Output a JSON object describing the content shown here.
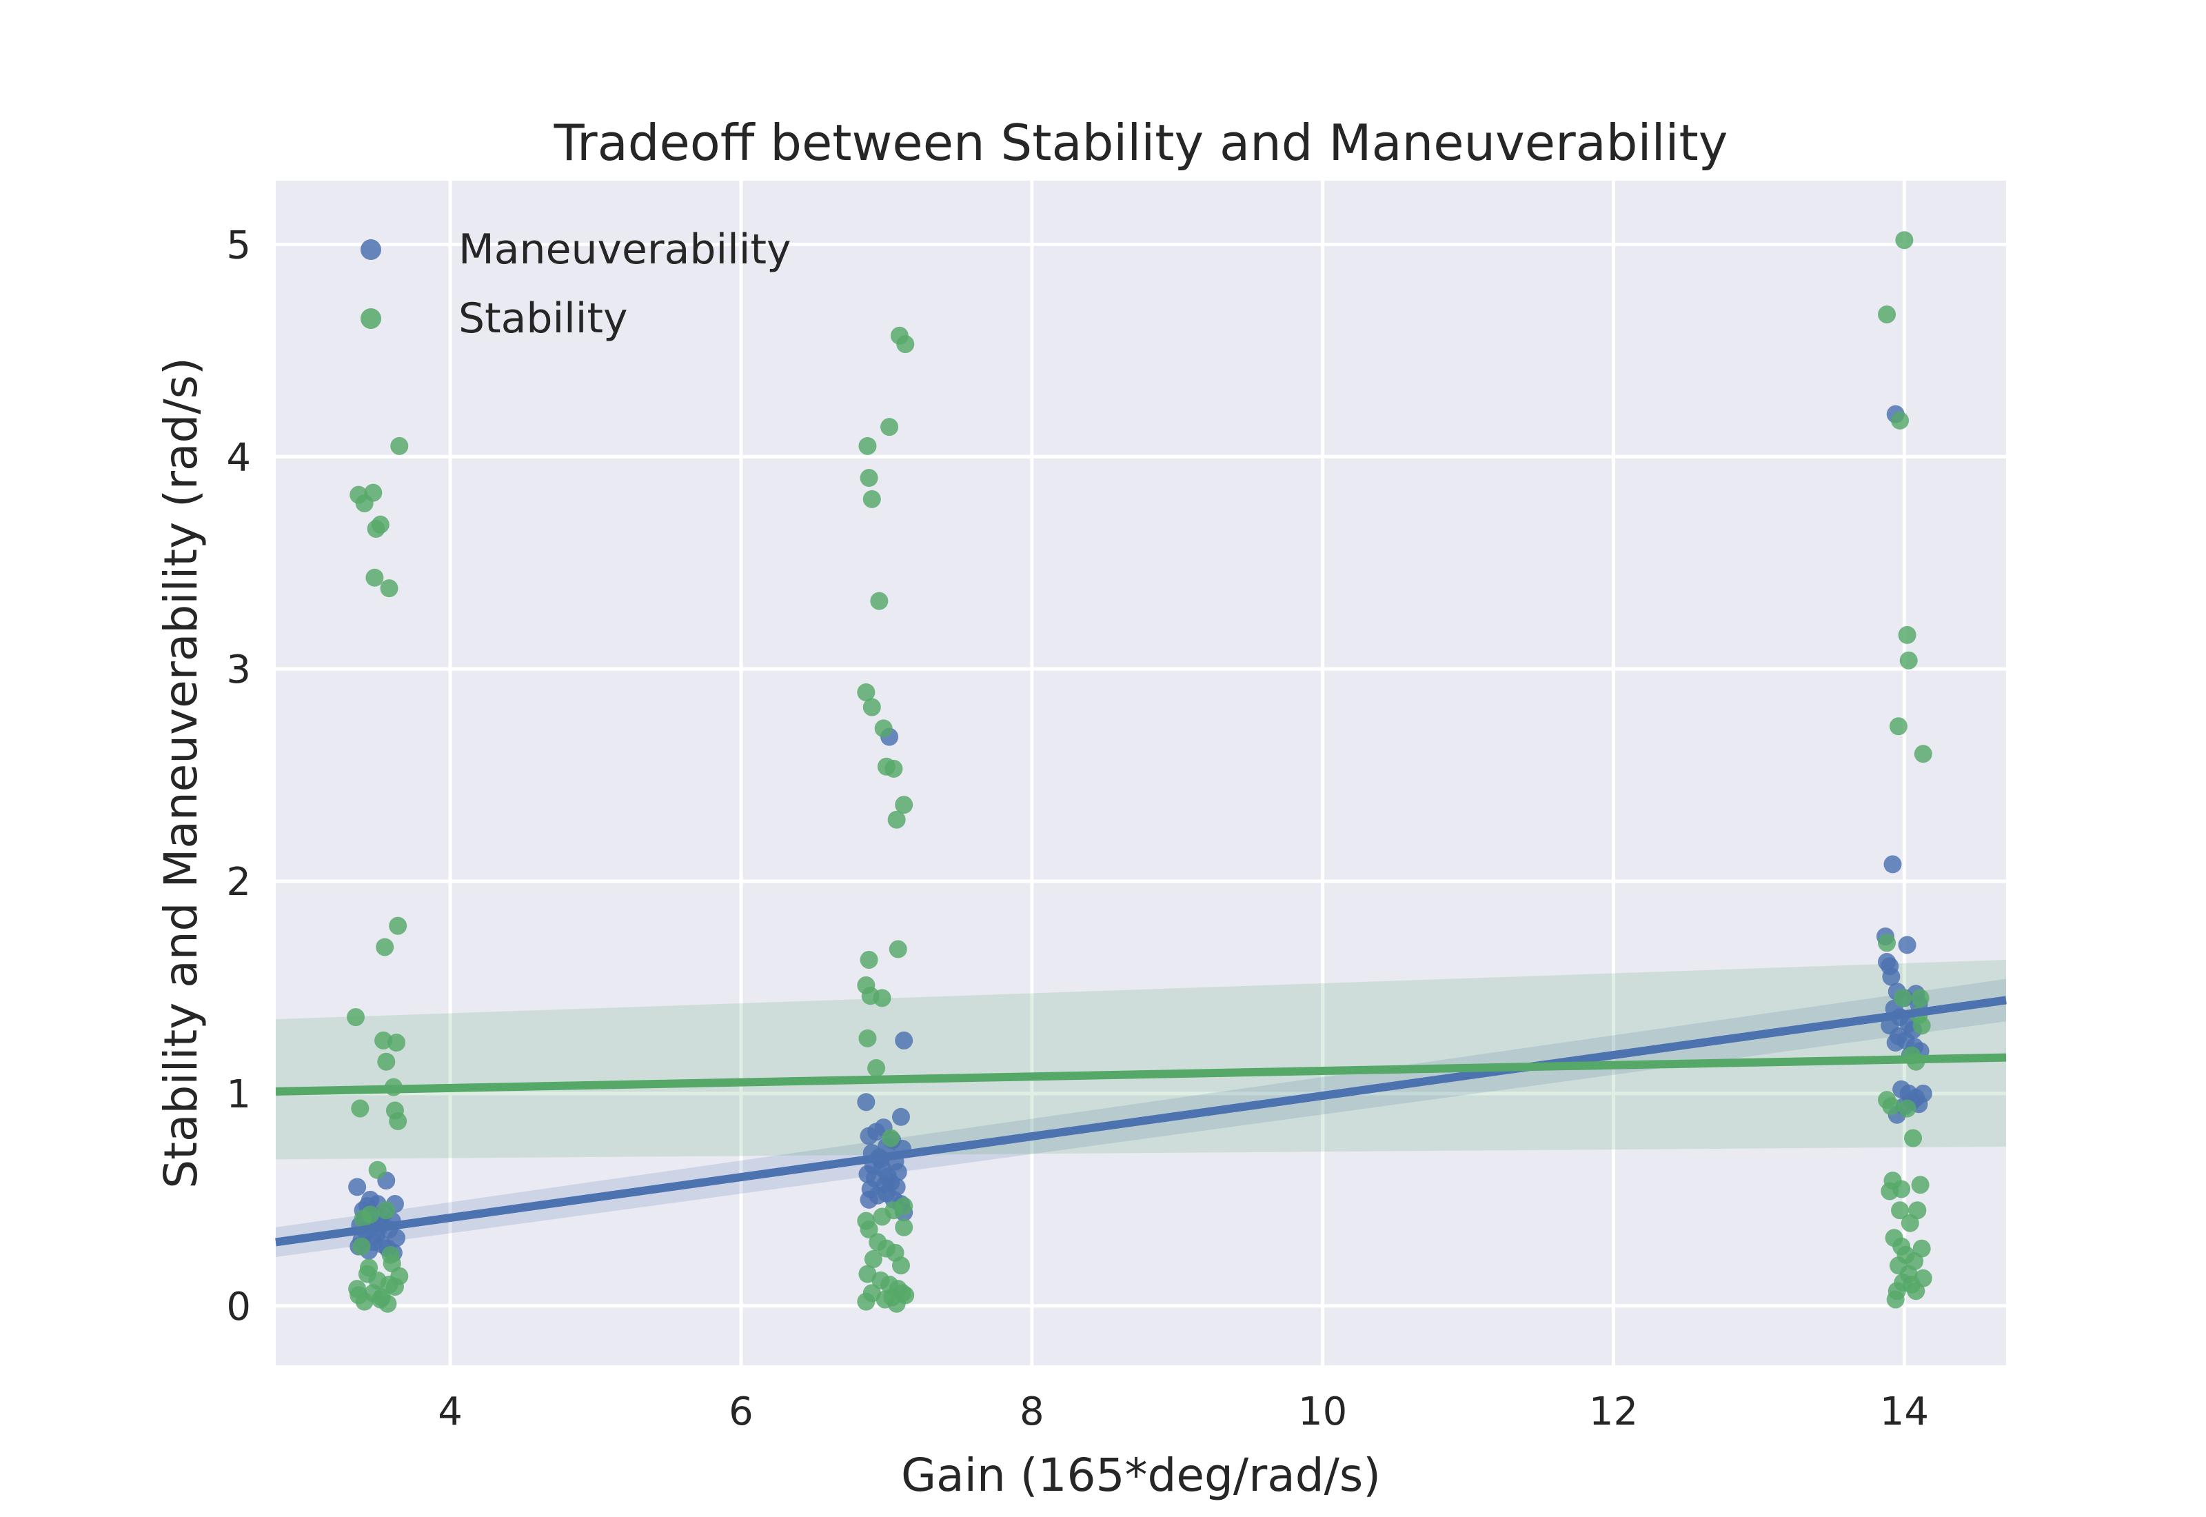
{
  "colors": {
    "plot_background": "#EAEAF2",
    "grid": "#FFFFFF",
    "maneuverability": "#4C72B0",
    "stability": "#55A868"
  },
  "chart_data": {
    "type": "scatter",
    "title": "Tradeoff between Stability and Maneuverability",
    "xlabel": "Gain (165*deg/rad/s)",
    "ylabel": "Stability and Maneuverability (rad/s)",
    "xlim": [
      2.8,
      14.7
    ],
    "ylim": [
      -0.28,
      5.3
    ],
    "x_ticks": [
      4,
      6,
      8,
      10,
      12,
      14
    ],
    "x_tick_labels": [
      "4",
      "6",
      "8",
      "10",
      "12",
      "14"
    ],
    "y_ticks": [
      0,
      1,
      2,
      3,
      4,
      5
    ],
    "y_tick_labels": [
      "0",
      "1",
      "2",
      "3",
      "4",
      "5"
    ],
    "grid": true,
    "legend": "top-left",
    "series": [
      {
        "name": "Maneuverability",
        "color": "#4C72B0",
        "points": [
          [
            3.36,
            0.56
          ],
          [
            3.4,
            0.45
          ],
          [
            3.45,
            0.5
          ],
          [
            3.5,
            0.48
          ],
          [
            3.56,
            0.59
          ],
          [
            3.62,
            0.48
          ],
          [
            3.38,
            0.38
          ],
          [
            3.42,
            0.35
          ],
          [
            3.47,
            0.3
          ],
          [
            3.52,
            0.42
          ],
          [
            3.58,
            0.36
          ],
          [
            3.63,
            0.32
          ],
          [
            3.37,
            0.28
          ],
          [
            3.44,
            0.26
          ],
          [
            3.49,
            0.33
          ],
          [
            3.55,
            0.44
          ],
          [
            3.6,
            0.4
          ],
          [
            3.41,
            0.41
          ],
          [
            3.53,
            0.29
          ],
          [
            3.46,
            0.39
          ],
          [
            3.57,
            0.27
          ],
          [
            3.39,
            0.31
          ],
          [
            3.51,
            0.37
          ],
          [
            3.61,
            0.25
          ],
          [
            3.43,
            0.47
          ],
          [
            6.86,
            0.96
          ],
          [
            7.12,
            1.25
          ],
          [
            7.02,
            2.68
          ],
          [
            6.88,
            0.8
          ],
          [
            6.93,
            0.82
          ],
          [
            6.98,
            0.84
          ],
          [
            7.04,
            0.78
          ],
          [
            7.1,
            0.89
          ],
          [
            6.9,
            0.72
          ],
          [
            6.95,
            0.7
          ],
          [
            7.0,
            0.75
          ],
          [
            7.06,
            0.68
          ],
          [
            7.11,
            0.74
          ],
          [
            6.87,
            0.62
          ],
          [
            6.92,
            0.6
          ],
          [
            6.97,
            0.65
          ],
          [
            7.03,
            0.58
          ],
          [
            7.08,
            0.63
          ],
          [
            6.89,
            0.55
          ],
          [
            6.94,
            0.52
          ],
          [
            6.99,
            0.57
          ],
          [
            7.05,
            0.5
          ],
          [
            7.1,
            0.48
          ],
          [
            6.91,
            0.66
          ],
          [
            6.96,
            0.69
          ],
          [
            7.01,
            0.61
          ],
          [
            7.07,
            0.56
          ],
          [
            6.88,
            0.5
          ],
          [
            7.12,
            0.44
          ],
          [
            7.0,
            0.53
          ],
          [
            13.87,
            1.74
          ],
          [
            13.9,
            1.6
          ],
          [
            13.92,
            2.08
          ],
          [
            13.94,
            4.2
          ],
          [
            14.02,
            1.7
          ],
          [
            13.88,
            1.62
          ],
          [
            13.91,
            1.55
          ],
          [
            13.95,
            1.48
          ],
          [
            14.0,
            1.45
          ],
          [
            14.08,
            1.47
          ],
          [
            14.1,
            1.42
          ],
          [
            13.93,
            1.4
          ],
          [
            13.97,
            1.36
          ],
          [
            14.03,
            1.33
          ],
          [
            14.06,
            1.3
          ],
          [
            13.9,
            1.32
          ],
          [
            13.96,
            1.27
          ],
          [
            14.01,
            1.25
          ],
          [
            14.07,
            1.22
          ],
          [
            14.11,
            1.2
          ],
          [
            13.94,
            1.24
          ],
          [
            14.04,
            1.18
          ],
          [
            13.98,
            1.02
          ],
          [
            14.03,
            1.0
          ],
          [
            14.08,
            0.98
          ],
          [
            14.13,
            1.0
          ],
          [
            13.95,
            0.9
          ],
          [
            14.0,
            0.94
          ],
          [
            14.05,
            0.96
          ],
          [
            14.1,
            0.95
          ]
        ],
        "regression": {
          "x": [
            2.8,
            14.7
          ],
          "y": [
            0.3,
            1.44
          ],
          "ci_lower": [
            0.23,
            1.34
          ],
          "ci_upper": [
            0.37,
            1.54
          ]
        }
      },
      {
        "name": "Stability",
        "color": "#55A868",
        "points": [
          [
            3.65,
            4.05
          ],
          [
            3.37,
            3.82
          ],
          [
            3.41,
            3.78
          ],
          [
            3.47,
            3.83
          ],
          [
            3.49,
            3.66
          ],
          [
            3.52,
            3.68
          ],
          [
            3.48,
            3.43
          ],
          [
            3.58,
            3.38
          ],
          [
            3.64,
            1.79
          ],
          [
            3.55,
            1.69
          ],
          [
            3.35,
            1.36
          ],
          [
            3.54,
            1.25
          ],
          [
            3.63,
            1.24
          ],
          [
            3.56,
            1.15
          ],
          [
            3.61,
            1.03
          ],
          [
            3.38,
            0.93
          ],
          [
            3.62,
            0.92
          ],
          [
            3.64,
            0.87
          ],
          [
            3.5,
            0.64
          ],
          [
            3.4,
            0.41
          ],
          [
            3.45,
            0.43
          ],
          [
            3.56,
            0.45
          ],
          [
            3.39,
            0.28
          ],
          [
            3.6,
            0.2
          ],
          [
            3.43,
            0.15
          ],
          [
            3.5,
            0.12
          ],
          [
            3.58,
            0.1
          ],
          [
            3.36,
            0.08
          ],
          [
            3.47,
            0.06
          ],
          [
            3.53,
            0.04
          ],
          [
            3.62,
            0.09
          ],
          [
            3.41,
            0.02
          ],
          [
            3.57,
            0.01
          ],
          [
            3.65,
            0.14
          ],
          [
            3.44,
            0.18
          ],
          [
            3.59,
            0.24
          ],
          [
            3.37,
            0.05
          ],
          [
            3.52,
            0.03
          ],
          [
            7.09,
            4.57
          ],
          [
            7.13,
            4.53
          ],
          [
            7.02,
            4.14
          ],
          [
            6.87,
            4.05
          ],
          [
            6.88,
            3.9
          ],
          [
            6.9,
            3.8
          ],
          [
            6.95,
            3.32
          ],
          [
            6.86,
            2.89
          ],
          [
            6.9,
            2.82
          ],
          [
            6.98,
            2.72
          ],
          [
            7.0,
            2.54
          ],
          [
            7.05,
            2.53
          ],
          [
            7.12,
            2.36
          ],
          [
            7.07,
            2.29
          ],
          [
            7.08,
            1.68
          ],
          [
            6.88,
            1.63
          ],
          [
            6.86,
            1.51
          ],
          [
            6.89,
            1.46
          ],
          [
            6.97,
            1.45
          ],
          [
            6.87,
            1.26
          ],
          [
            6.93,
            1.12
          ],
          [
            7.03,
            0.79
          ],
          [
            7.12,
            0.47
          ],
          [
            7.05,
            0.45
          ],
          [
            6.97,
            0.42
          ],
          [
            6.86,
            0.4
          ],
          [
            6.88,
            0.36
          ],
          [
            7.12,
            0.37
          ],
          [
            6.94,
            0.3
          ],
          [
            7.0,
            0.27
          ],
          [
            7.06,
            0.25
          ],
          [
            6.91,
            0.22
          ],
          [
            7.1,
            0.19
          ],
          [
            6.87,
            0.15
          ],
          [
            6.96,
            0.12
          ],
          [
            7.02,
            0.1
          ],
          [
            7.08,
            0.08
          ],
          [
            6.9,
            0.06
          ],
          [
            7.04,
            0.04
          ],
          [
            7.11,
            0.06
          ],
          [
            6.86,
            0.02
          ],
          [
            7.07,
            0.01
          ],
          [
            6.99,
            0.03
          ],
          [
            7.13,
            0.05
          ],
          [
            14.0,
            5.02
          ],
          [
            13.88,
            4.67
          ],
          [
            13.97,
            4.17
          ],
          [
            14.02,
            3.16
          ],
          [
            14.03,
            3.04
          ],
          [
            13.96,
            2.73
          ],
          [
            14.13,
            2.6
          ],
          [
            13.88,
            1.71
          ],
          [
            13.99,
            1.45
          ],
          [
            14.11,
            1.45
          ],
          [
            14.1,
            1.37
          ],
          [
            14.12,
            1.32
          ],
          [
            14.05,
            1.18
          ],
          [
            14.08,
            1.15
          ],
          [
            13.88,
            0.97
          ],
          [
            13.91,
            0.94
          ],
          [
            14.02,
            0.93
          ],
          [
            14.06,
            0.79
          ],
          [
            13.92,
            0.59
          ],
          [
            14.11,
            0.57
          ],
          [
            13.9,
            0.54
          ],
          [
            13.98,
            0.55
          ],
          [
            13.97,
            0.45
          ],
          [
            14.09,
            0.45
          ],
          [
            14.04,
            0.39
          ],
          [
            13.93,
            0.32
          ],
          [
            13.98,
            0.28
          ],
          [
            14.12,
            0.27
          ],
          [
            14.01,
            0.24
          ],
          [
            13.96,
            0.19
          ],
          [
            14.07,
            0.21
          ],
          [
            14.03,
            0.15
          ],
          [
            14.13,
            0.13
          ],
          [
            13.99,
            0.11
          ],
          [
            14.05,
            0.1
          ],
          [
            13.95,
            0.07
          ],
          [
            14.08,
            0.07
          ],
          [
            13.94,
            0.03
          ]
        ],
        "regression": {
          "x": [
            2.8,
            14.7
          ],
          "y": [
            1.01,
            1.17
          ],
          "ci_lower": [
            0.69,
            0.75
          ],
          "ci_upper": [
            1.35,
            1.63
          ]
        }
      }
    ]
  }
}
